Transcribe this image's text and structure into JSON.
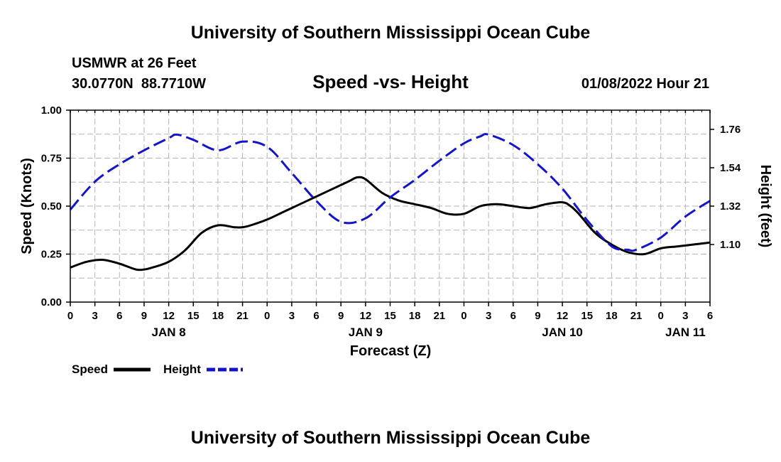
{
  "page": {
    "title": "University of Southern Mississippi Ocean Cube",
    "footer_title": "University of Southern Mississippi Ocean Cube",
    "station": "USMWR at 26 Feet",
    "coords": "30.0770N  88.7710W",
    "chart_title": "Speed -vs- Height",
    "timestamp": "01/08/2022 Hour 21"
  },
  "chart_data": {
    "type": "line",
    "title": "Speed -vs- Height",
    "xlabel": "Forecast (Z)",
    "ylabel_left": "Speed (Knots)",
    "ylabel_right": "Height (feet)",
    "x_range_hours": [
      0,
      78
    ],
    "x_tick_labels": [
      "0",
      "3",
      "6",
      "9",
      "12",
      "15",
      "18",
      "21",
      "0",
      "3",
      "6",
      "9",
      "12",
      "15",
      "18",
      "21",
      "0",
      "3",
      "6",
      "9",
      "12",
      "15",
      "18",
      "21",
      "0",
      "3",
      "6"
    ],
    "day_labels": [
      {
        "label": "JAN 8",
        "hour": 12
      },
      {
        "label": "JAN 9",
        "hour": 36
      },
      {
        "label": "JAN 10",
        "hour": 60
      },
      {
        "label": "JAN 11",
        "hour": 75
      }
    ],
    "y_left": {
      "range": [
        0,
        1
      ],
      "ticks": [
        0.0,
        0.25,
        0.5,
        0.75,
        1.0
      ],
      "tick_labels": [
        "0.00",
        "0.25",
        "0.50",
        "0.75",
        "1.00"
      ]
    },
    "y_right": {
      "range": [
        0.77,
        1.87
      ],
      "ticks": [
        1.1,
        1.32,
        1.54,
        1.76
      ],
      "tick_labels": [
        "1.10",
        "1.32",
        "1.54",
        "1.76"
      ]
    },
    "grid": true,
    "series": [
      {
        "name": "Speed",
        "axis": "left",
        "color": "#000000",
        "style": "solid",
        "x": [
          0,
          2,
          4,
          6,
          8,
          9,
          10,
          12,
          14,
          16,
          18,
          20,
          21,
          22,
          24,
          26,
          28,
          30,
          32,
          34,
          35,
          36,
          38,
          40,
          42,
          44,
          46,
          48,
          50,
          52,
          54,
          56,
          58,
          60,
          61,
          62,
          64,
          66,
          68,
          70,
          72,
          74,
          76,
          78
        ],
        "y": [
          0.18,
          0.21,
          0.22,
          0.2,
          0.17,
          0.17,
          0.18,
          0.21,
          0.27,
          0.36,
          0.4,
          0.39,
          0.39,
          0.4,
          0.43,
          0.47,
          0.51,
          0.55,
          0.59,
          0.63,
          0.65,
          0.64,
          0.57,
          0.53,
          0.51,
          0.49,
          0.46,
          0.46,
          0.5,
          0.51,
          0.5,
          0.49,
          0.51,
          0.52,
          0.5,
          0.46,
          0.36,
          0.3,
          0.26,
          0.25,
          0.28,
          0.29,
          0.3,
          0.31
        ]
      },
      {
        "name": "Height",
        "axis": "right",
        "color": "#1414c8",
        "style": "dashed",
        "x": [
          0,
          3,
          6,
          9,
          12,
          13,
          15,
          18,
          21,
          24,
          27,
          30,
          33,
          36,
          39,
          42,
          45,
          48,
          50,
          51,
          54,
          57,
          60,
          63,
          66,
          68,
          69,
          72,
          75,
          78
        ],
        "y": [
          1.3,
          1.46,
          1.56,
          1.64,
          1.71,
          1.73,
          1.7,
          1.64,
          1.69,
          1.66,
          1.51,
          1.35,
          1.23,
          1.25,
          1.37,
          1.47,
          1.58,
          1.68,
          1.72,
          1.73,
          1.67,
          1.56,
          1.42,
          1.24,
          1.09,
          1.07,
          1.07,
          1.14,
          1.26,
          1.35
        ]
      }
    ],
    "legend": [
      {
        "label": "Speed",
        "color": "#000000",
        "style": "solid"
      },
      {
        "label": "Height",
        "color": "#1414c8",
        "style": "dashed"
      }
    ]
  }
}
